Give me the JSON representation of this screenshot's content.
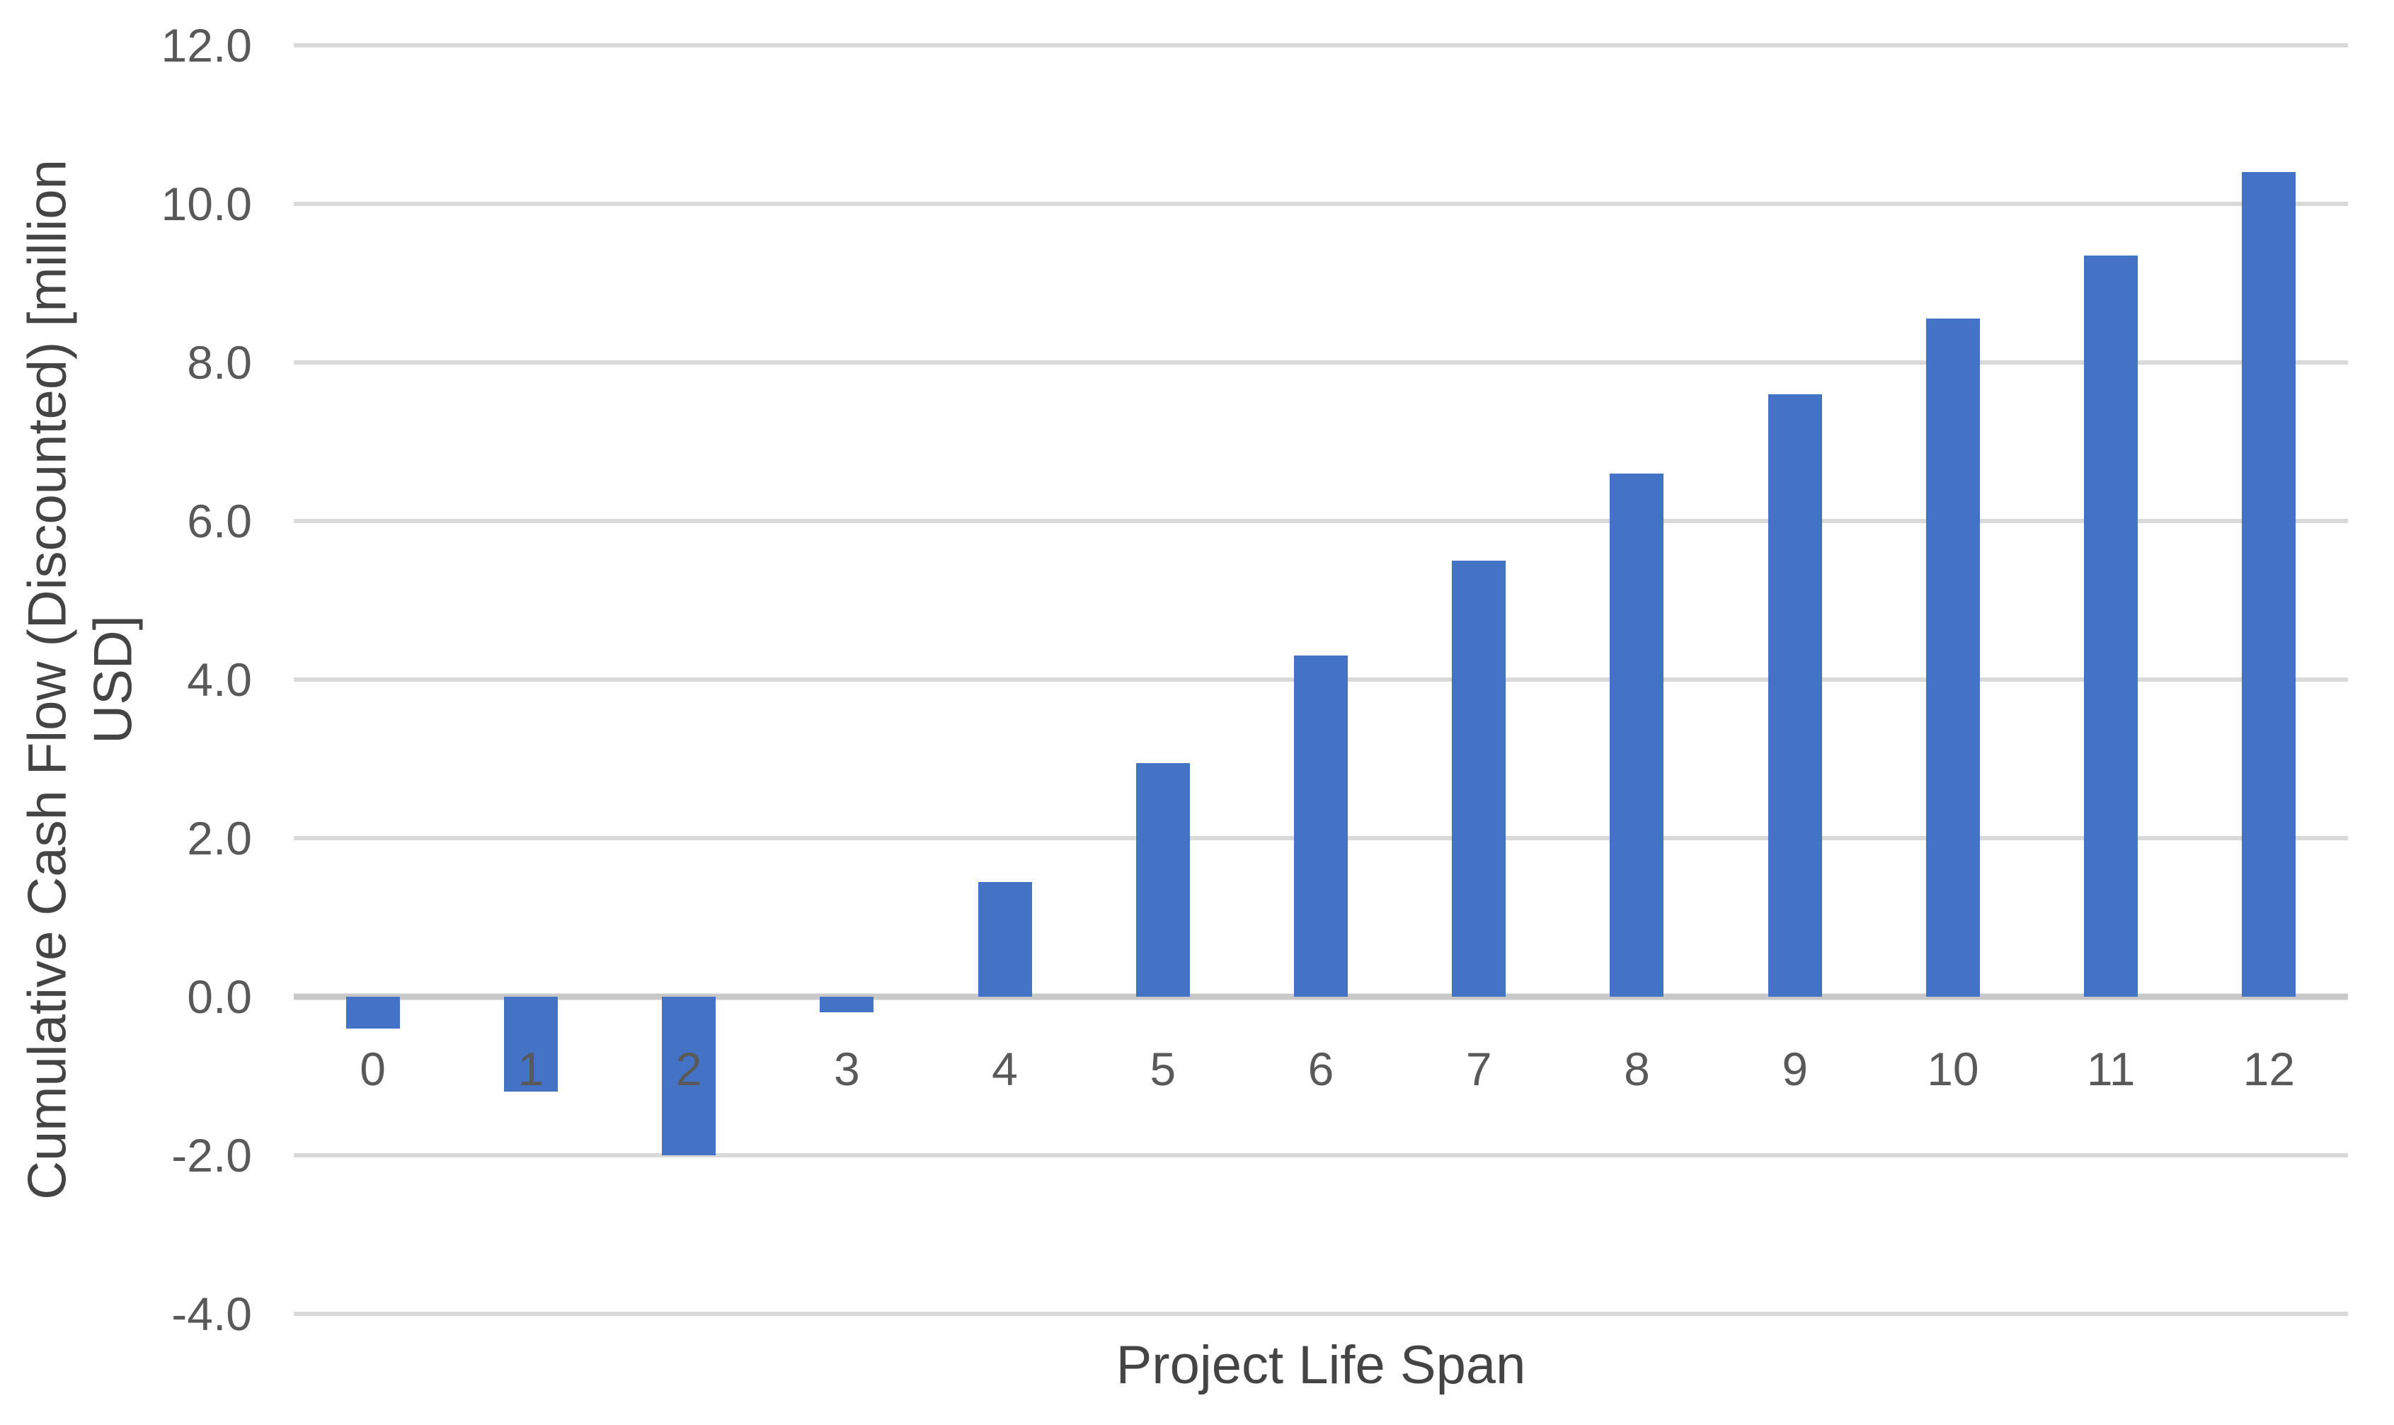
{
  "chart_data": {
    "type": "bar",
    "title": "",
    "xlabel": "Project Life Span",
    "ylabel": "Cumulative Cash Flow (Discounted) [million\nUSD]",
    "categories": [
      "0",
      "1",
      "2",
      "3",
      "4",
      "5",
      "6",
      "7",
      "8",
      "9",
      "10",
      "11",
      "12"
    ],
    "values": [
      -0.4,
      -1.2,
      -2.0,
      -0.2,
      1.45,
      2.95,
      4.3,
      5.5,
      6.6,
      7.6,
      8.55,
      9.35,
      10.4
    ],
    "ylim": [
      -4.0,
      12.0
    ],
    "ytick_step": 2.0,
    "ytick_labels": [
      "12.0",
      "10.0",
      "8.0",
      "6.0",
      "4.0",
      "2.0",
      "0.0",
      "-2.0",
      "-4.0"
    ],
    "grid": true,
    "legend": false,
    "bar_color": "#4472C4",
    "gridline_color": "#D9D9D9",
    "axis_line_color": "#C9C9C9",
    "tick_label_color": "#595959",
    "axis_title_color": "#444444",
    "background_color": "#FFFFFF"
  }
}
